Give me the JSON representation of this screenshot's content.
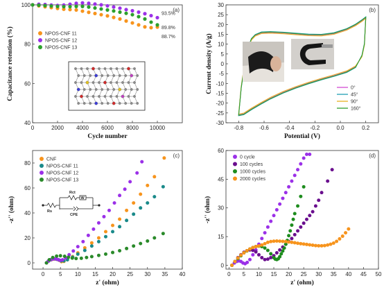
{
  "chart_data": [
    {
      "panel_label": "(a)",
      "type": "line",
      "xlabel": "Cycle number",
      "ylabel": "Capacitance retention (%)",
      "xlim": [
        0,
        12000
      ],
      "ylim": [
        40,
        100
      ],
      "xticks": [
        0,
        2000,
        4000,
        6000,
        8000,
        10000
      ],
      "yticks": [
        40,
        60,
        80,
        100
      ],
      "legend_position": "top-left",
      "series": [
        {
          "name": "NPOS-CNF 11",
          "color": "#f7941d",
          "x": [
            0,
            500,
            1000,
            1500,
            2000,
            2500,
            3000,
            3500,
            4000,
            4500,
            5000,
            5500,
            6000,
            6500,
            7000,
            7500,
            8000,
            8500,
            9000,
            9500,
            10000
          ],
          "y": [
            100,
            99.5,
            99,
            98.6,
            98.2,
            97.8,
            97.6,
            97.4,
            96.8,
            96.2,
            95.6,
            95,
            94.4,
            93.6,
            92.8,
            91.8,
            90.8,
            89.8,
            88.8,
            88.4,
            88.7
          ],
          "end_label": "88.7%"
        },
        {
          "name": "NPOS-CNF 12",
          "color": "#9b30e8",
          "x": [
            0,
            500,
            1000,
            1500,
            2000,
            2500,
            3000,
            3500,
            4000,
            4500,
            5000,
            5500,
            6000,
            6500,
            7000,
            7500,
            8000,
            8500,
            9000,
            9500,
            10000
          ],
          "y": [
            100,
            100.3,
            100.2,
            99.9,
            99.7,
            99.9,
            100.3,
            100.8,
            101,
            100.8,
            100.4,
            100,
            99.5,
            98.9,
            98.3,
            97.6,
            97,
            96.3,
            95.5,
            94.5,
            93.5
          ],
          "end_label": "93.5%"
        },
        {
          "name": "NPOS-CNF 13",
          "color": "#2ca02c",
          "x": [
            0,
            500,
            1000,
            1500,
            2000,
            2500,
            3000,
            3500,
            4000,
            4500,
            5000,
            5500,
            6000,
            6500,
            7000,
            7500,
            8000,
            8500,
            9000,
            9500,
            10000
          ],
          "y": [
            100,
            99.8,
            99.6,
            99.4,
            99.2,
            99.1,
            99.1,
            99.2,
            99.2,
            98.9,
            98.4,
            97.9,
            97.4,
            96.9,
            96.3,
            95.7,
            95,
            94,
            92.8,
            91.2,
            89.8
          ],
          "end_label": "89.8%"
        }
      ]
    },
    {
      "panel_label": "(b)",
      "type": "line",
      "xlabel": "Potential (V)",
      "ylabel": "Current density (A/g)",
      "xlim": [
        -0.9,
        0.3
      ],
      "ylim": [
        -30,
        30
      ],
      "xticks": [
        -0.8,
        -0.6,
        -0.4,
        -0.2,
        0.0,
        0.2
      ],
      "xtick_labels": [
        "-0.8",
        "-0.6",
        "-0.4",
        "-0.2",
        "0.0",
        "0.2"
      ],
      "yticks": [
        -30,
        -25,
        -20,
        -15,
        -10,
        -5,
        0,
        5,
        10,
        15,
        20,
        25,
        30
      ],
      "legend_position": "bottom-right",
      "series": [
        {
          "name": "0°",
          "color": "#d24bd2"
        },
        {
          "name": "45°",
          "color": "#1f9fb4"
        },
        {
          "name": "90°",
          "color": "#e8b020"
        },
        {
          "name": "160°",
          "color": "#2e9e2e"
        }
      ],
      "cv_upper": {
        "x": [
          -0.8,
          -0.78,
          -0.76,
          -0.74,
          -0.72,
          -0.7,
          -0.67,
          -0.62,
          -0.55,
          -0.45,
          -0.35,
          -0.25,
          -0.15,
          -0.05,
          0.05,
          0.12,
          0.17,
          0.2
        ],
        "y": [
          -26,
          -12,
          -3,
          4,
          9,
          12.5,
          14.5,
          15.8,
          16,
          15.7,
          15.2,
          14.7,
          14.6,
          15.4,
          17.5,
          19.8,
          22,
          23.5
        ]
      },
      "cv_lower": {
        "x": [
          0.2,
          0.19,
          0.17,
          0.12,
          0.05,
          -0.05,
          -0.15,
          -0.25,
          -0.35,
          -0.45,
          -0.55,
          -0.62,
          -0.7,
          -0.76,
          -0.8
        ],
        "y": [
          23.5,
          10,
          4,
          -1.5,
          -4,
          -6,
          -7.8,
          -9.8,
          -12,
          -14.5,
          -17.5,
          -20,
          -23,
          -25.5,
          -26
        ]
      }
    },
    {
      "panel_label": "(c)",
      "type": "scatter",
      "xlabel": "z' (ohm)",
      "ylabel": "-z'' (ohm)",
      "xlim": [
        -3,
        40
      ],
      "ylim": [
        -5,
        90
      ],
      "xticks": [
        0,
        5,
        10,
        15,
        20,
        25,
        30,
        35,
        40
      ],
      "yticks": [
        0,
        20,
        40,
        60,
        80
      ],
      "legend_position": "top-left",
      "circuit_labels": {
        "rs": "Rs",
        "rct": "Rct",
        "w": "W",
        "cpe": "CPE"
      },
      "series": [
        {
          "name": "CNF",
          "color": "#f7941d",
          "x": [
            1,
            1.6,
            2.4,
            3.2,
            4,
            4.7,
            5.3,
            6,
            7,
            8.5,
            10,
            12,
            14,
            16,
            18,
            20,
            22,
            24,
            26,
            28,
            30,
            32,
            34.8
          ],
          "y": [
            0,
            1.5,
            2.5,
            3,
            2.8,
            2,
            1,
            1.2,
            2.5,
            5,
            8,
            12,
            16,
            20,
            25,
            30,
            35,
            42,
            48,
            55,
            62,
            69,
            84
          ]
        },
        {
          "name": "NPOS-CNF 11",
          "color": "#1a8a8a",
          "x": [
            1,
            1.6,
            2.3,
            3,
            3.8,
            4.5,
            5.2,
            6,
            7,
            8.5,
            10,
            12,
            14,
            16,
            18,
            20,
            22,
            24,
            26,
            28,
            30,
            32,
            34.5
          ],
          "y": [
            0,
            1.5,
            2.6,
            3.2,
            3,
            2.4,
            1.6,
            1.6,
            2.5,
            4.5,
            7,
            10,
            13.5,
            17,
            21,
            25,
            29,
            34,
            39,
            44,
            48,
            53,
            61
          ]
        },
        {
          "name": "NPOS-CNF 12",
          "color": "#9b30e8",
          "x": [
            1,
            1.5,
            2.1,
            2.8,
            3.5,
            4.2,
            4.9,
            5.6,
            6.5,
            7.5,
            8.7,
            10,
            11.5,
            13,
            14.5,
            16,
            17.5,
            19,
            20.5,
            22,
            23.5,
            25,
            27,
            28.4
          ],
          "y": [
            0,
            1.4,
            2.4,
            3.1,
            3.2,
            2.7,
            2,
            2.4,
            4,
            6.5,
            9.5,
            13,
            17,
            22,
            27,
            32,
            37,
            42,
            48,
            54,
            59,
            65,
            72,
            81
          ]
        },
        {
          "name": "NPOS-CNF 13",
          "color": "#2a8a2a",
          "x": [
            1,
            1.8,
            2.8,
            3.9,
            5,
            6.2,
            7.3,
            8.4,
            9.5,
            11,
            12.5,
            14,
            16,
            18,
            20,
            22,
            24,
            26,
            28,
            30,
            32,
            34.5
          ],
          "y": [
            0,
            2.5,
            4.3,
            5.4,
            5.7,
            5.3,
            4.5,
            3.8,
            3.5,
            3.7,
            4.3,
            5,
            6,
            7,
            8.3,
            9.7,
            11.5,
            13.5,
            15.5,
            17.5,
            20,
            23.5
          ]
        }
      ]
    },
    {
      "panel_label": "(d)",
      "type": "scatter",
      "xlabel": "z' (ohm)",
      "ylabel": "-z'' (ohm)",
      "xlim": [
        -1,
        50
      ],
      "ylim": [
        -2,
        60
      ],
      "xticks": [
        0,
        5,
        10,
        15,
        20,
        25,
        30,
        35,
        40,
        45,
        50
      ],
      "yticks": [
        0,
        15,
        30,
        45,
        60
      ],
      "legend_position": "top-left",
      "series": [
        {
          "name": "0 cycle",
          "color": "#9b30e8",
          "x": [
            1,
            1.8,
            2.6,
            3.3,
            4,
            4.7,
            5.4,
            6.1,
            7,
            8,
            9,
            10,
            11,
            12,
            13,
            14,
            15,
            16,
            17,
            18,
            19,
            20,
            21,
            22,
            23,
            24,
            25,
            26,
            27
          ],
          "y": [
            0,
            1.2,
            2,
            2.3,
            2,
            1.2,
            0.8,
            1.5,
            3,
            5.5,
            8,
            11,
            14,
            17,
            20,
            23,
            26,
            29,
            32,
            35,
            38,
            41,
            44,
            47,
            50,
            53,
            56,
            58,
            58
          ]
        },
        {
          "name": "100 cycles",
          "color": "#6a0f8e",
          "x": [
            1,
            2,
            3,
            4,
            5,
            6,
            7,
            8,
            9,
            10,
            11,
            12,
            13,
            14,
            15,
            16,
            17,
            18,
            19,
            20,
            21,
            22,
            23,
            24,
            25,
            26,
            27,
            28,
            29,
            30,
            31,
            33,
            34.5
          ],
          "y": [
            0,
            2,
            4,
            5.5,
            6.8,
            7.6,
            8,
            7.8,
            7,
            5.5,
            4,
            3,
            3.2,
            4,
            5,
            6.5,
            8,
            9.5,
            11,
            12.5,
            14,
            16,
            18,
            20,
            22,
            24,
            26,
            28,
            31,
            34,
            38,
            44,
            50
          ]
        },
        {
          "name": "1000 cycles",
          "color": "#1e8c1e",
          "x": [
            1,
            2,
            3,
            4,
            5,
            6,
            7,
            8,
            9,
            10,
            11,
            12,
            13,
            14,
            15,
            15.5,
            16,
            16.5,
            17,
            17.5,
            18,
            18.5,
            19,
            19.5,
            20,
            20.5,
            21,
            21.5,
            22,
            23,
            24,
            25
          ],
          "y": [
            0,
            2,
            3.5,
            5,
            6.5,
            7.5,
            8.5,
            9.3,
            9.8,
            10,
            9.8,
            9,
            7.8,
            6,
            4,
            3.2,
            3,
            3.4,
            4.5,
            6,
            7.5,
            9,
            11,
            13,
            15.5,
            18,
            21,
            24,
            27,
            31,
            36,
            41
          ]
        },
        {
          "name": "2000 cycles",
          "color": "#f7941d",
          "x": [
            1,
            2,
            3,
            4,
            5,
            6,
            7,
            8,
            9,
            10,
            11,
            12,
            13,
            14,
            15,
            16,
            17,
            18,
            19,
            20,
            21,
            22,
            23,
            24,
            25,
            26,
            27,
            28,
            29,
            30,
            31,
            32,
            33,
            34,
            35,
            36,
            37,
            38,
            39,
            40
          ],
          "y": [
            0,
            2,
            3.8,
            5.3,
            6.5,
            7.6,
            8.5,
            9.3,
            9.8,
            10.1,
            10.6,
            11.3,
            12,
            12.4,
            12.6,
            12.7,
            12.6,
            12.5,
            12.4,
            12.2,
            12,
            11.8,
            11.5,
            11.3,
            11.1,
            10.9,
            10.7,
            10.5,
            10.3,
            10.2,
            10.2,
            10.3,
            10.6,
            11,
            11.6,
            12.5,
            13.8,
            15.2,
            17,
            19
          ]
        }
      ]
    }
  ]
}
